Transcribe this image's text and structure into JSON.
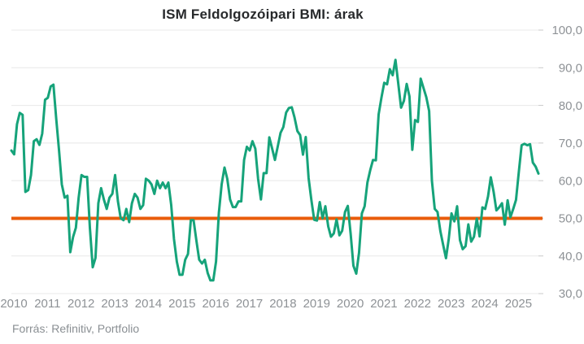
{
  "header": {
    "title": "ISM Feldolgozóipari BMI: árak"
  },
  "footer": {
    "source": "Forrás: Refinitiv, Portfolio"
  },
  "chart_data": {
    "type": "line",
    "title": "ISM Feldolgozóipari BMI: árak",
    "frequency": "monthly",
    "x_start": "2010-01",
    "x_end": "2025-09",
    "x_tick_labels": [
      "2010",
      "2011",
      "2012",
      "2013",
      "2014",
      "2015",
      "2016",
      "2017",
      "2018",
      "2019",
      "2020",
      "2021",
      "2022",
      "2023",
      "2024",
      "2025"
    ],
    "y_tick_labels": [
      "100,0",
      "90,0",
      "80,0",
      "70,0",
      "60,0",
      "50,0",
      "40,0",
      "30,0"
    ],
    "ylim": [
      30,
      100
    ],
    "grid": true,
    "legend": "none",
    "grid_color": "#e8e8e8",
    "tick_color": "#c9c9c9",
    "axis_text_color": "#8e9296",
    "reference_line": {
      "value": 50,
      "color": "#e95c0b"
    },
    "series": [
      {
        "name": "ISM Feldolgozóipari BMI: árak",
        "color": "#16a37a",
        "values": [
          68.0,
          67.0,
          75.0,
          78.0,
          77.5,
          57.0,
          57.5,
          61.5,
          70.5,
          71.0,
          69.5,
          72.5,
          81.5,
          82.0,
          85.0,
          85.5,
          76.5,
          68.0,
          59.0,
          55.5,
          56.0,
          41.0,
          45.0,
          47.5,
          55.5,
          61.5,
          61.0,
          61.0,
          47.5,
          37.0,
          39.5,
          54.0,
          58.0,
          55.0,
          52.5,
          55.5,
          56.5,
          61.5,
          54.5,
          50.0,
          49.5,
          52.5,
          49.0,
          54.0,
          56.5,
          55.5,
          52.5,
          53.5,
          60.5,
          60.0,
          59.0,
          56.5,
          60.0,
          58.0,
          59.5,
          58.0,
          59.5,
          53.5,
          44.5,
          38.5,
          35.0,
          35.0,
          39.0,
          40.5,
          49.5,
          49.5,
          44.0,
          39.0,
          38.0,
          39.0,
          35.5,
          33.5,
          33.5,
          38.5,
          51.5,
          59.0,
          63.5,
          60.5,
          55.0,
          53.0,
          53.0,
          54.5,
          54.5,
          65.5,
          69.0,
          68.0,
          70.5,
          68.5,
          60.5,
          55.0,
          62.0,
          62.0,
          71.5,
          68.5,
          65.5,
          69.0,
          72.7,
          74.2,
          78.1,
          79.3,
          79.5,
          76.8,
          73.2,
          72.1,
          66.9,
          71.6,
          60.7,
          54.9,
          49.6,
          49.4,
          54.3,
          50.0,
          53.2,
          47.9,
          45.1,
          46.0,
          49.7,
          45.5,
          46.7,
          51.7,
          53.3,
          45.9,
          37.4,
          35.3,
          40.8,
          51.3,
          53.2,
          59.5,
          62.8,
          65.5,
          65.4,
          77.6,
          82.1,
          86.0,
          85.6,
          89.6,
          88.0,
          92.1,
          85.7,
          79.4,
          81.2,
          85.7,
          82.4,
          68.2,
          76.1,
          75.6,
          87.1,
          84.6,
          82.2,
          78.5,
          60.0,
          52.5,
          51.7,
          46.6,
          43.0,
          39.4,
          44.5,
          51.3,
          49.2,
          53.2,
          44.2,
          41.8,
          42.6,
          48.4,
          43.8,
          45.1,
          49.9,
          45.2,
          52.9,
          52.5,
          55.8,
          60.9,
          57.0,
          52.1,
          52.9,
          54.0,
          48.3,
          54.8,
          50.3,
          52.5,
          54.9,
          62.4,
          69.4,
          69.8,
          69.4,
          69.7,
          64.8,
          63.7,
          61.9
        ]
      }
    ]
  }
}
